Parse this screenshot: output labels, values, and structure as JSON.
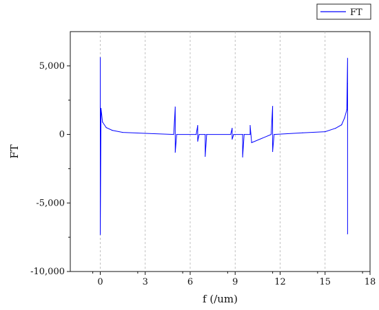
{
  "chart_data": {
    "type": "line",
    "title": "",
    "xlabel": "f (/um)",
    "ylabel": "FT",
    "xlim": [
      -2,
      18
    ],
    "ylim": [
      -10000,
      7500
    ],
    "xticks": [
      0,
      3,
      6,
      9,
      12,
      15,
      18
    ],
    "xtick_labels": [
      "0",
      "3",
      "6",
      "9",
      "12",
      "15",
      "18"
    ],
    "yticks": [
      -10000,
      -5000,
      0,
      5000
    ],
    "ytick_labels": [
      "-10,000",
      "-5,000",
      "0",
      "5,000"
    ],
    "grid": {
      "x": true,
      "y": false,
      "style": "dashed",
      "color": "#b0b0b0"
    },
    "legend": {
      "position": "top-right",
      "entries": [
        "FT"
      ]
    },
    "series": [
      {
        "name": "FT",
        "color": "#0000ff",
        "x": [
          0,
          0.0,
          0.05,
          0.15,
          0.4,
          0.8,
          1.5,
          3,
          4.9,
          5.0,
          5.0,
          5.1,
          6.4,
          6.5,
          6.5,
          6.6,
          7.0,
          7.0,
          7.1,
          8.7,
          8.8,
          8.8,
          8.9,
          9.5,
          9.5,
          9.6,
          10.0,
          10.0,
          10.1,
          11.4,
          11.5,
          11.5,
          11.6,
          13.5,
          15,
          15.7,
          16.1,
          16.3,
          16.45,
          16.5,
          16.5,
          16.5
        ],
        "y": [
          5600,
          -7300,
          1900,
          900,
          500,
          300,
          150,
          80,
          0,
          2000,
          -1300,
          0,
          0,
          650,
          -500,
          0,
          0,
          -1600,
          0,
          0,
          450,
          -350,
          0,
          0,
          -1650,
          0,
          0,
          650,
          -600,
          0,
          2050,
          -1250,
          0,
          120,
          200,
          450,
          700,
          1200,
          1800,
          5550,
          -7250,
          3700
        ]
      }
    ]
  }
}
